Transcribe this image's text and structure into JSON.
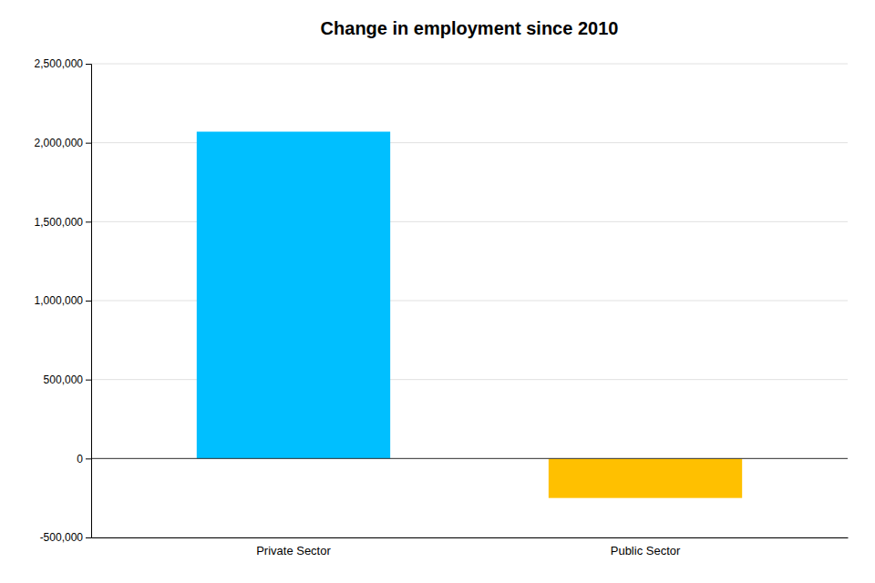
{
  "chart_data": {
    "type": "bar",
    "title": "Change in employment since 2010",
    "categories": [
      "Private Sector",
      "Public Sector"
    ],
    "values": [
      2070000,
      -250000
    ],
    "colors": [
      "#00BFFF",
      "#FFC000"
    ],
    "ylim": [
      -500000,
      2500000
    ],
    "yticks": [
      {
        "value": -500000,
        "label": "-500,000"
      },
      0,
      {
        "value": 500000,
        "label": "500,000"
      },
      {
        "value": 1000000,
        "label": "1,000,000"
      },
      {
        "value": 1500000,
        "label": "1,500,000"
      },
      {
        "value": 2000000,
        "label": "2,000,000"
      },
      {
        "value": 2500000,
        "label": "2,500,000"
      }
    ],
    "grid": true
  }
}
